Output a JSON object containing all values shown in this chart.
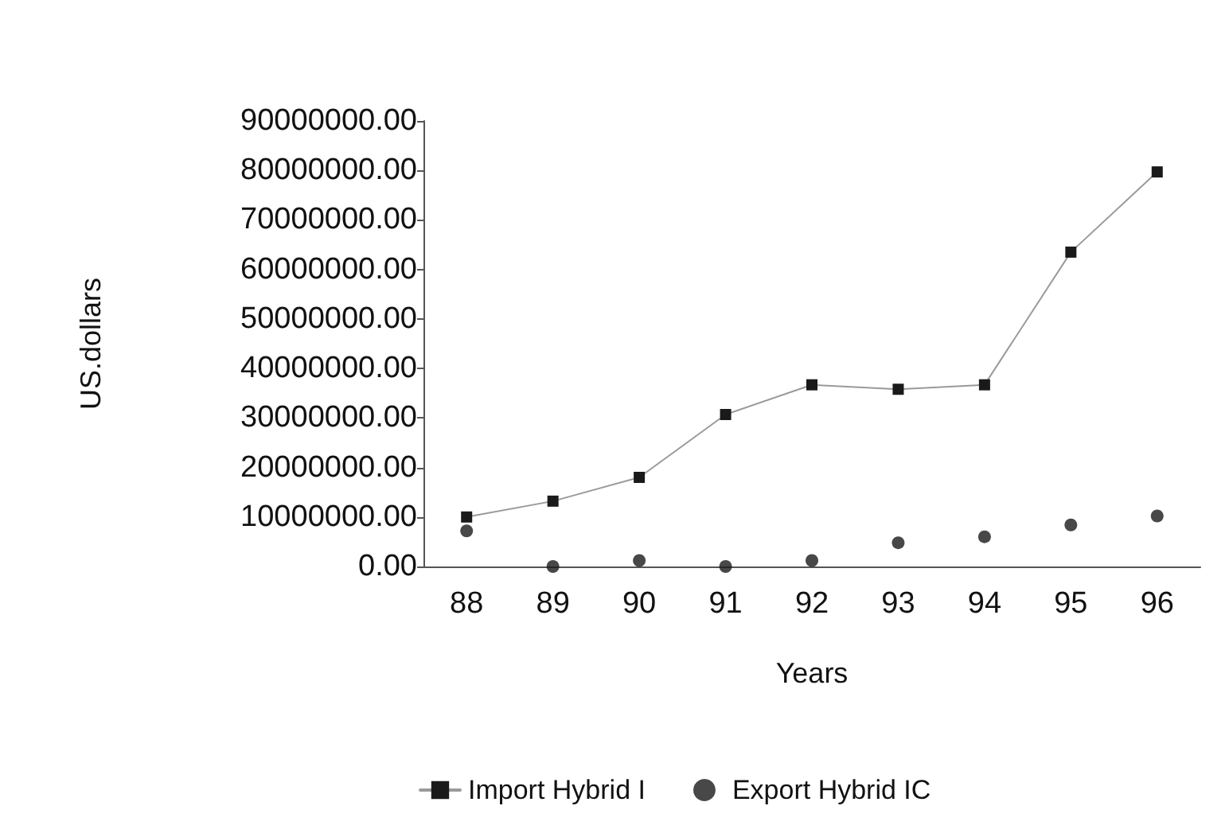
{
  "chart_data": {
    "type": "line",
    "xlabel": "Years",
    "ylabel": "US.dollars",
    "categories": [
      "88",
      "89",
      "90",
      "91",
      "92",
      "93",
      "94",
      "95",
      "96"
    ],
    "series": [
      {
        "name": "Import Hybrid I",
        "marker": "square",
        "color": "#1a1a1a",
        "values": [
          10000000,
          13200000,
          18000000,
          30700000,
          36700000,
          35800000,
          36700000,
          63500000,
          79700000
        ]
      },
      {
        "name": "Export Hybrid IC",
        "type": "scatter",
        "marker": "circle",
        "color": "#1a1a1a",
        "values": [
          7200000,
          0,
          1200000,
          0,
          1200000,
          4800000,
          6000000,
          8400000,
          10200000
        ]
      }
    ],
    "ylim": [
      0,
      90000000
    ],
    "yticks": [
      {
        "value": 0,
        "label": "0.00"
      },
      {
        "value": 10000000,
        "label": "10000000.00"
      },
      {
        "value": 20000000,
        "label": "20000000.00"
      },
      {
        "value": 30000000,
        "label": "30000000.00"
      },
      {
        "value": 40000000,
        "label": "40000000.00"
      },
      {
        "value": 50000000,
        "label": "50000000.00"
      },
      {
        "value": 60000000,
        "label": "60000000.00"
      },
      {
        "value": 70000000,
        "label": "70000000.00"
      },
      {
        "value": 80000000,
        "label": "80000000.00"
      },
      {
        "value": 90000000,
        "label": "90000000.00"
      }
    ],
    "grid": false,
    "legend": "bottom"
  }
}
